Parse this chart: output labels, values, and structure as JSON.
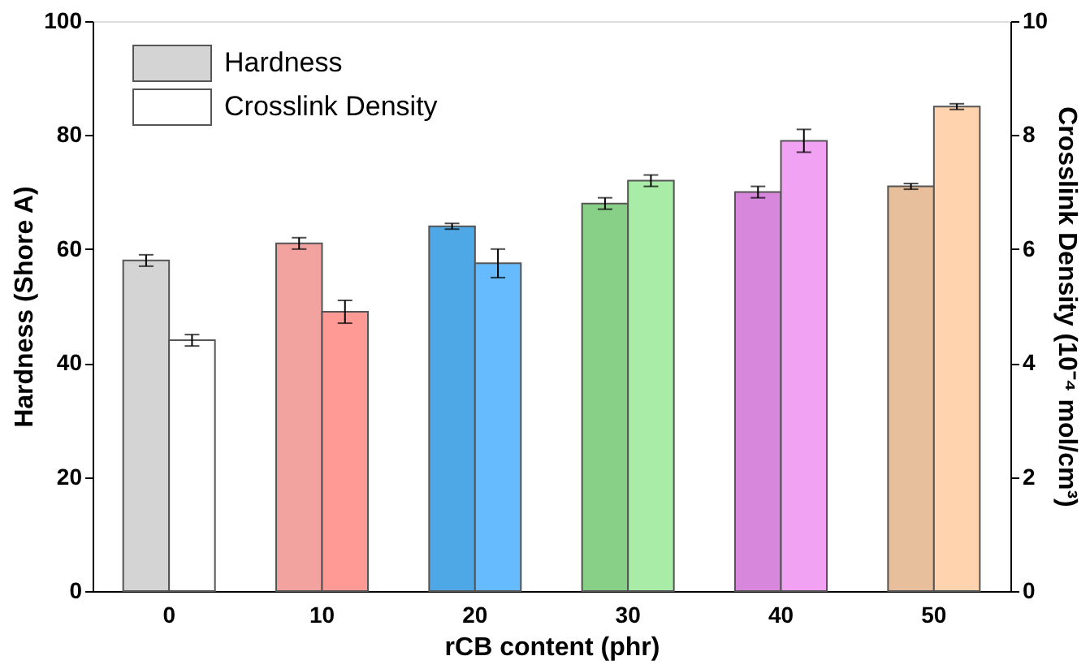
{
  "chart_data": {
    "type": "bar",
    "xlabel": "rCB content (phr)",
    "ylabel": "Hardness (Shore A)",
    "y2label": "Crosslink Density (10⁻⁴ mol/cm³)",
    "categories": [
      "0",
      "10",
      "20",
      "30",
      "40",
      "50"
    ],
    "series": [
      {
        "name": "Hardness",
        "colors": [
          "#d4d4d4",
          "#f2a3a0",
          "#4fa8e6",
          "#88d088",
          "#d888dc",
          "#e8bf9c"
        ],
        "values": [
          58,
          61,
          64,
          68,
          70,
          71
        ],
        "errors": [
          1,
          1,
          0.5,
          1,
          1,
          0.5
        ]
      },
      {
        "name": "Crosslink Density",
        "axis": "y2",
        "colors": [
          "#ffffff",
          "#ff9a94",
          "#66bbff",
          "#a8eca8",
          "#f2a2f2",
          "#ffd3ae"
        ],
        "values": [
          4.4,
          4.9,
          5.75,
          7.2,
          7.9,
          8.5
        ],
        "errors": [
          0.1,
          0.2,
          0.25,
          0.1,
          0.2,
          0.05
        ]
      }
    ],
    "ylim": [
      0,
      100
    ],
    "yticks": [
      0,
      20,
      40,
      60,
      80,
      100
    ],
    "y2lim": [
      0,
      10
    ],
    "y2ticks": [
      0,
      2,
      4,
      6,
      8,
      10
    ],
    "legend": "top left",
    "grid": false
  }
}
